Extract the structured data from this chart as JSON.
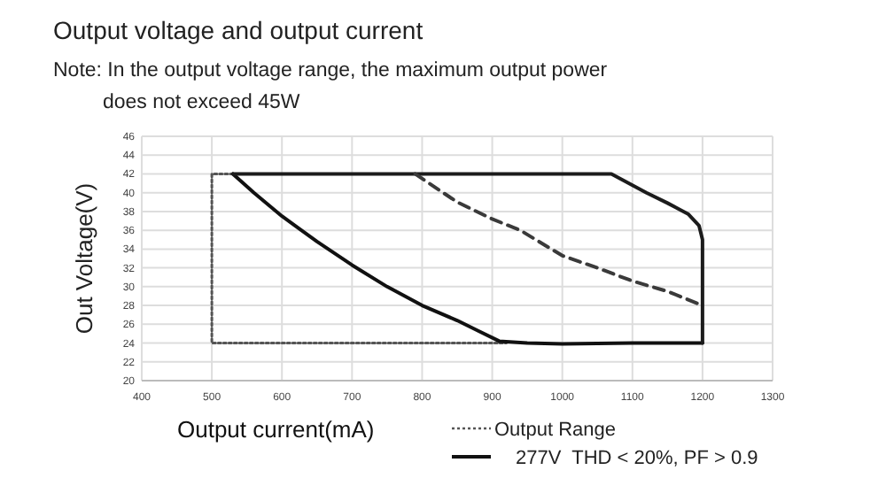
{
  "chart_data": {
    "type": "line",
    "title": "Output voltage and output current",
    "annotations": [
      "Note: In the output voltage range, the maximum output power does not exceed 45W"
    ],
    "xlabel": "Output current(mA)",
    "ylabel": "Out Voltage(V)",
    "xlim": [
      400,
      1300
    ],
    "xticks": [
      400,
      500,
      600,
      700,
      800,
      900,
      1000,
      1100,
      1200,
      1300
    ],
    "ylim": [
      20,
      46
    ],
    "yticks": [
      20,
      22,
      24,
      26,
      28,
      30,
      32,
      34,
      36,
      38,
      40,
      42,
      44,
      46
    ],
    "grid": true,
    "legend": "bottom",
    "series": [
      {
        "name": "Output Range",
        "color": "#555555",
        "line_style": "dotted",
        "x": [
          530,
          500,
          500,
          920
        ],
        "values": [
          42,
          42,
          24,
          24
        ]
      },
      {
        "name": "277V  THD < 20%, PF > 0.9",
        "color": "#111111",
        "line_style": "solid",
        "x": [
          530,
          560,
          600,
          650,
          700,
          750,
          800,
          850,
          880,
          910,
          950,
          1000,
          1100,
          1200
        ],
        "values": [
          42,
          40,
          37.5,
          34.8,
          32.3,
          30,
          28,
          26.4,
          25.3,
          24.2,
          24,
          23.9,
          24,
          24
        ]
      },
      {
        "color": "#1c1c1c",
        "line_style": "solid",
        "x": [
          530,
          1070,
          1100,
          1120,
          1150,
          1180,
          1195,
          1200,
          1200
        ],
        "values": [
          42,
          42,
          40.8,
          40,
          38.9,
          37.7,
          36.5,
          35,
          24
        ]
      },
      {
        "color": "#3a3a3a",
        "line_style": "dashed",
        "x": [
          790,
          850,
          900,
          940,
          1000,
          1050,
          1100,
          1150,
          1200
        ],
        "values": [
          42,
          39,
          37.2,
          36,
          33.3,
          32,
          30.6,
          29.5,
          28
        ]
      }
    ]
  }
}
